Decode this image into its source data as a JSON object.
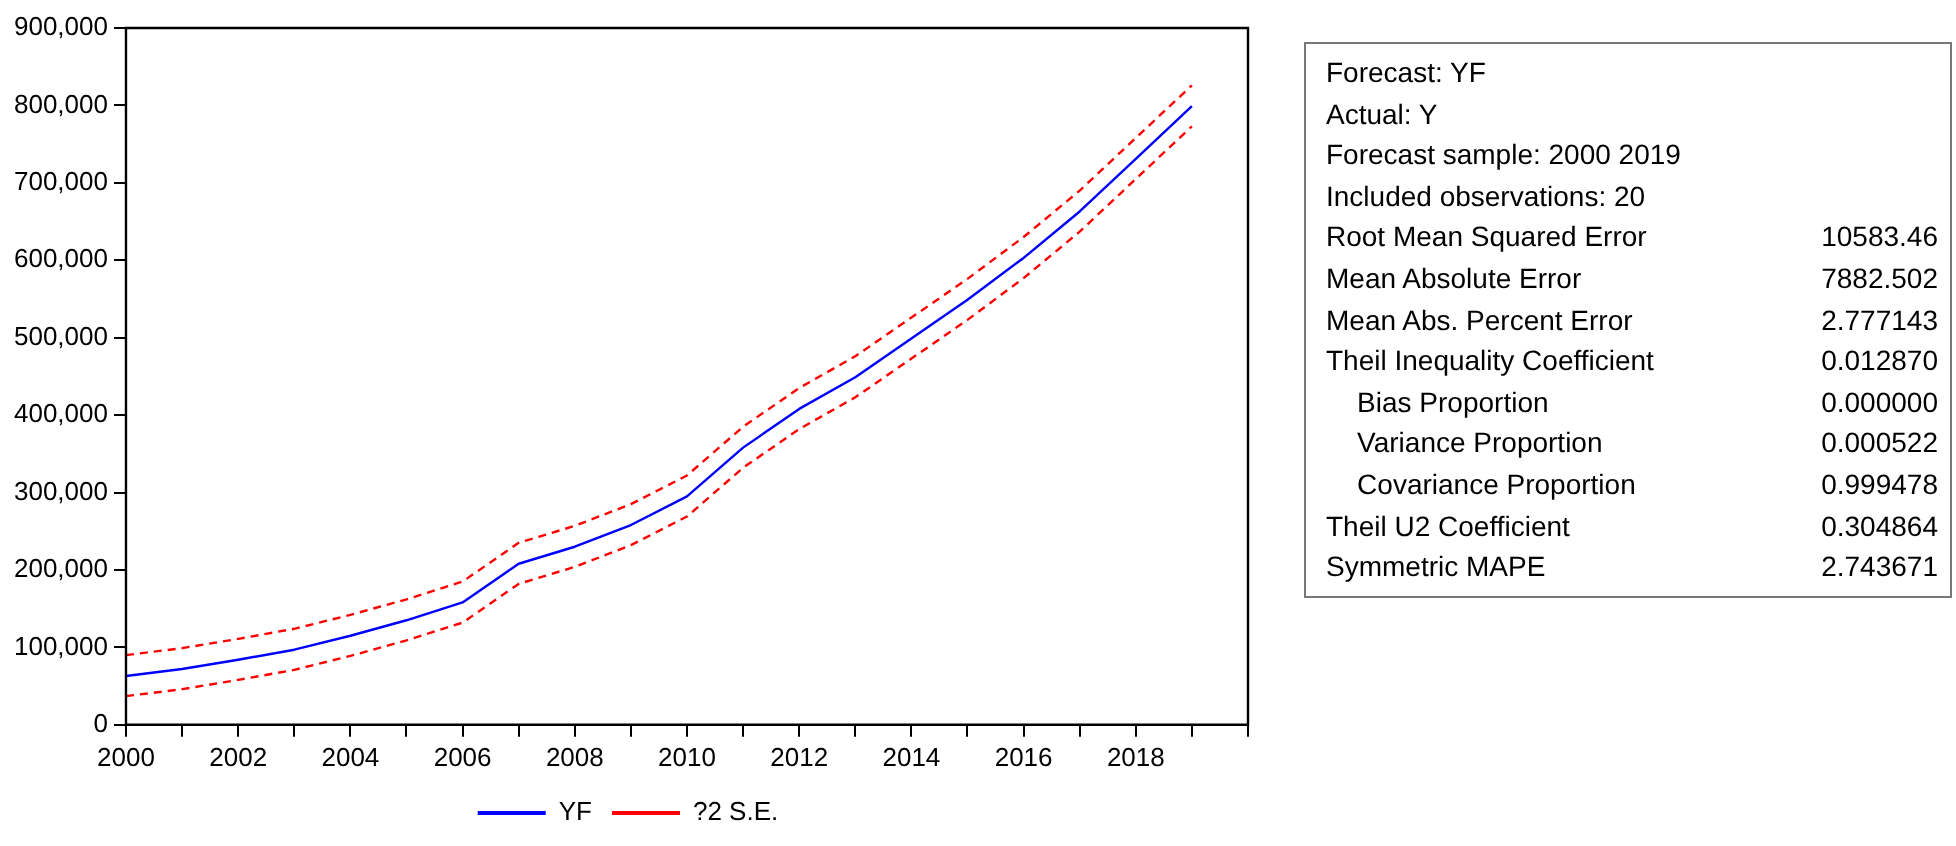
{
  "chart_data": {
    "type": "line",
    "x": [
      2000,
      2001,
      2002,
      2003,
      2004,
      2005,
      2006,
      2007,
      2008,
      2009,
      2010,
      2011,
      2012,
      2013,
      2014,
      2015,
      2016,
      2017,
      2018,
      2019
    ],
    "series": [
      {
        "name": "YF",
        "color": "#0000ff",
        "line_style": "solid",
        "values": [
          63000,
          72000,
          84000,
          97000,
          115000,
          135000,
          158000,
          208000,
          230000,
          258000,
          295000,
          358000,
          408000,
          449000,
          499000,
          549000,
          603000,
          663000,
          731000,
          799000
        ]
      },
      {
        "name": "?2 S.E.",
        "color": "#ff0000",
        "line_style": "dashed",
        "values": [
          90000,
          99000,
          111000,
          124000,
          142000,
          162000,
          185000,
          235000,
          257000,
          285000,
          322000,
          385000,
          435000,
          476000,
          526000,
          576000,
          630000,
          690000,
          758000,
          826000
        ]
      },
      {
        "color": "#ff0000",
        "line_style": "dashed",
        "values": [
          37000,
          46000,
          58000,
          71000,
          89000,
          109000,
          132000,
          182000,
          204000,
          232000,
          269000,
          332000,
          382000,
          423000,
          473000,
          523000,
          577000,
          637000,
          705000,
          773000
        ]
      }
    ],
    "xlim": [
      2000,
      2020
    ],
    "xticks": [
      2000,
      {
        "value": 2001,
        "label": null
      },
      2002,
      {
        "value": 2003,
        "label": null
      },
      2004,
      {
        "value": 2005,
        "label": null
      },
      2006,
      {
        "value": 2007,
        "label": null
      },
      2008,
      {
        "value": 2009,
        "label": null
      },
      2010,
      {
        "value": 2011,
        "label": null
      },
      2012,
      {
        "value": 2013,
        "label": null
      },
      2014,
      {
        "value": 2015,
        "label": null
      },
      2016,
      {
        "value": 2017,
        "label": null
      },
      2018,
      {
        "value": 2019,
        "label": null
      },
      {
        "value": 2020,
        "label": null
      }
    ],
    "ylim": [
      0,
      900000
    ],
    "yticks": [
      0,
      {
        "value": 100000,
        "label": "100,000"
      },
      {
        "value": 200000,
        "label": "200,000"
      },
      {
        "value": 300000,
        "label": "300,000"
      },
      {
        "value": 400000,
        "label": "400,000"
      },
      {
        "value": 500000,
        "label": "500,000"
      },
      {
        "value": 600000,
        "label": "600,000"
      },
      {
        "value": 700000,
        "label": "700,000"
      },
      {
        "value": 800000,
        "label": "800,000"
      },
      {
        "value": 900000,
        "label": "900,000"
      }
    ],
    "grid": false,
    "legend": "bottom",
    "marker": "none",
    "annotations": [
      "Forecast: YF",
      "Actual: Y",
      "Forecast sample: 2000 2019",
      "Included observations: 20",
      "Root Mean Squared Error\t10583.46",
      "Mean Absolute Error\t7882.502",
      "Mean Abs. Percent Error\t2.777143",
      "Theil Inequality Coefficient\t0.012870",
      "    Bias Proportion\t0.000000",
      "    Variance Proportion\t0.000522",
      "    Covariance Proportion\t0.999478",
      "Theil U2 Coefficient\t0.304864",
      "Symmetric MAPE\t2.743671"
    ]
  }
}
